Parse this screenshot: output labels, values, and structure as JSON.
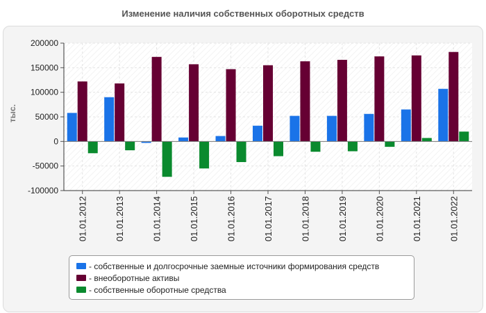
{
  "chart_data": {
    "type": "bar",
    "title": "Изменение наличия собственных оборотных средств",
    "ylabel": "тыс.",
    "xlabel": "",
    "ylim": [
      -100000,
      200000
    ],
    "yticks": [
      -100000,
      -50000,
      0,
      50000,
      100000,
      150000,
      200000
    ],
    "ytick_labels": [
      "-100000",
      "-50000",
      "0",
      "50000",
      "100000",
      "150000",
      "200000"
    ],
    "grid": true,
    "legend_position": "bottom",
    "categories": [
      "01.01.2012",
      "01.01.2013",
      "01.01.2014",
      "01.01.2015",
      "01.01.2016",
      "01.01.2017",
      "01.01.2018",
      "01.01.2019",
      "01.01.2020",
      "01.01.2021",
      "01.01.2022"
    ],
    "series": [
      {
        "name": "- собственные и долгосрочные заемные источники формирования средств",
        "color": "#1a73e8",
        "values": [
          58000,
          90000,
          -3000,
          8000,
          11000,
          32000,
          52000,
          52000,
          56000,
          65000,
          107000
        ]
      },
      {
        "name": "- внеоборотные активы",
        "color": "#660033",
        "values": [
          122000,
          118000,
          172000,
          157000,
          147000,
          155000,
          163000,
          166000,
          173000,
          175000,
          182000
        ]
      },
      {
        "name": "- собственные оборотные средства",
        "color": "#0a8a2e",
        "values": [
          -24000,
          -18000,
          -72000,
          -55000,
          -42000,
          -30000,
          -21000,
          -20000,
          -11000,
          7000,
          20000
        ]
      }
    ]
  }
}
